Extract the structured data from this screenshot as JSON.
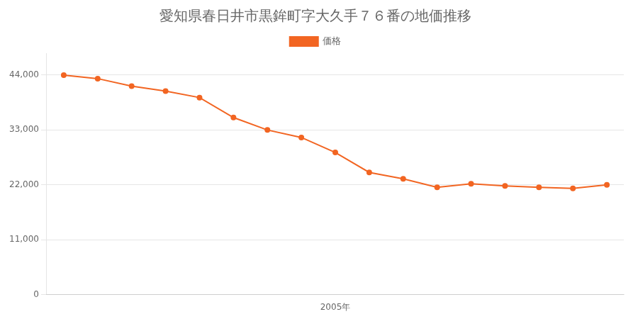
{
  "chart_data": {
    "type": "line",
    "title": "愛知県春日井市黒鉾町字大久手７６番の地価推移",
    "x": [
      1997,
      1998,
      1999,
      2000,
      2001,
      2002,
      2003,
      2004,
      2005,
      2006,
      2007,
      2008,
      2009,
      2010,
      2011,
      2012,
      2013
    ],
    "series": [
      {
        "name": "価格",
        "color": "#f26522",
        "values": [
          44000,
          43300,
          41800,
          40800,
          39500,
          35500,
          33000,
          31500,
          28500,
          24500,
          23200,
          21500,
          22200,
          21800,
          21500,
          21300,
          22000
        ]
      }
    ],
    "marker": "circle",
    "xlim": [
      1996.5,
      2013.5
    ],
    "xticks": [
      {
        "value": 2005,
        "label": "2005年"
      }
    ],
    "ylim": [
      0,
      48400
    ],
    "yticks": [
      0,
      {
        "value": 11000,
        "label": "11,000"
      },
      {
        "value": 22000,
        "label": "22,000"
      },
      {
        "value": 33000,
        "label": "33,000"
      },
      {
        "value": 44000,
        "label": "44,000"
      }
    ],
    "grid": "y",
    "legend": "top"
  }
}
